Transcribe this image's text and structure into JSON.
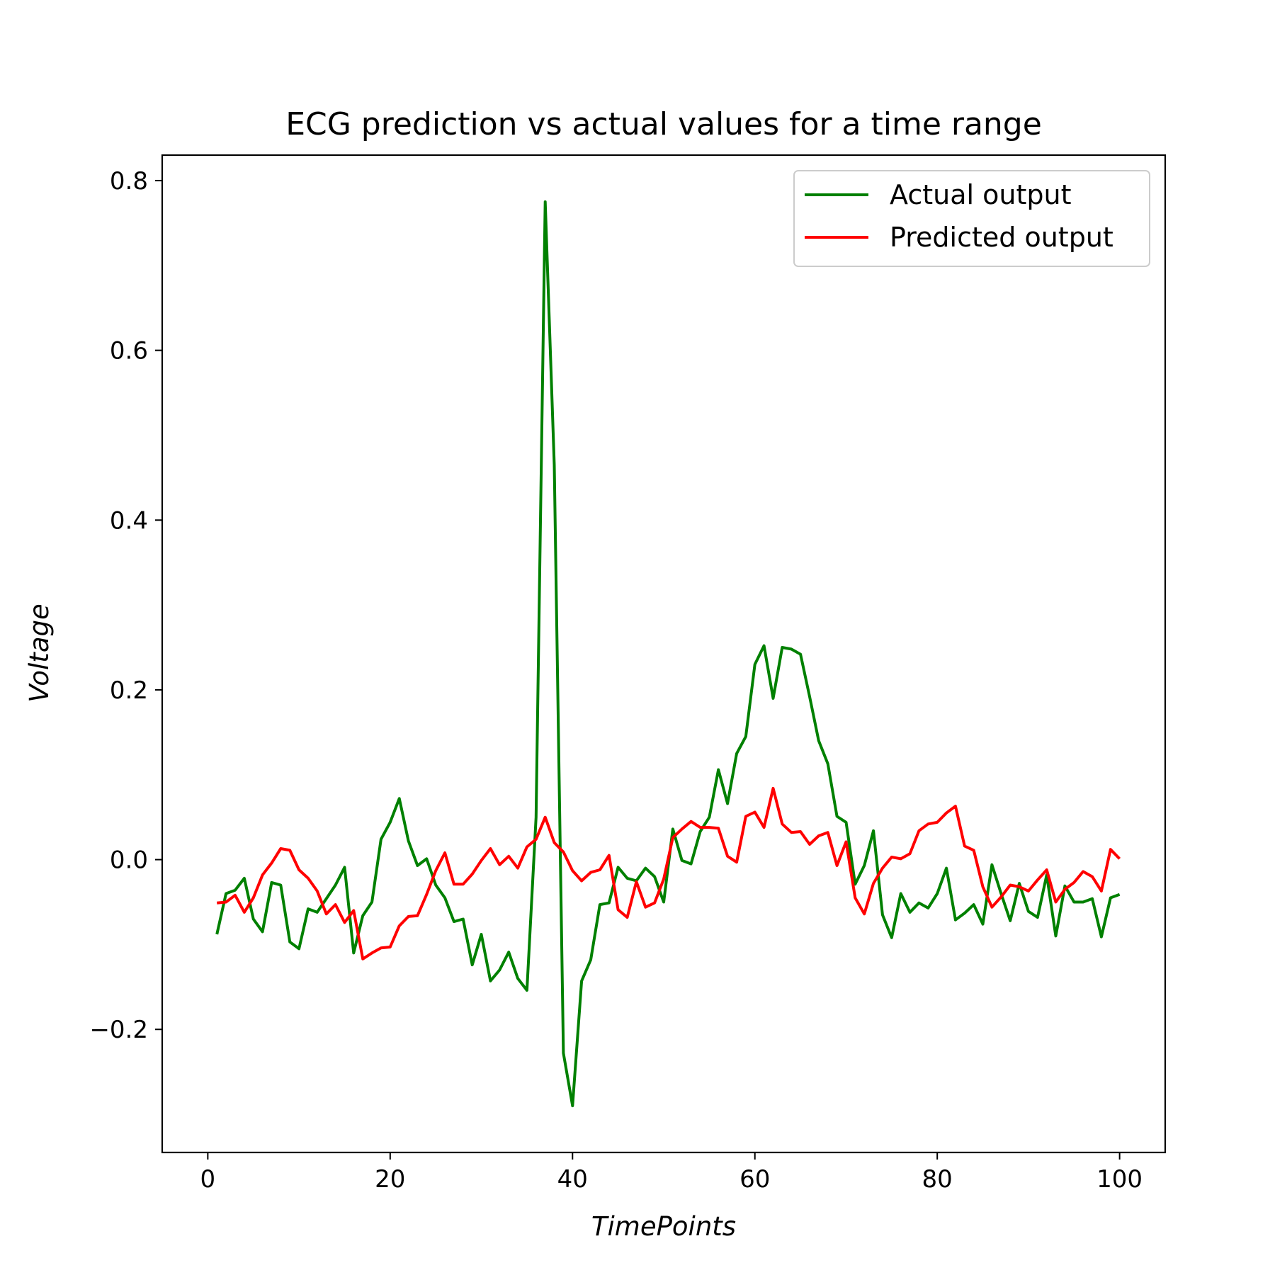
{
  "chart_data": {
    "type": "line",
    "title": "ECG prediction vs actual values for a time range",
    "xlabel": "TimePoints",
    "ylabel": "Voltage",
    "xlim": [
      -5,
      105
    ],
    "ylim": [
      -0.345,
      0.83
    ],
    "x_ticks": [
      0,
      20,
      40,
      60,
      80,
      100
    ],
    "y_ticks": [
      -0.2,
      0.0,
      0.2,
      0.4,
      0.6,
      0.8
    ],
    "x_tick_labels": [
      "0",
      "20",
      "40",
      "60",
      "80",
      "100"
    ],
    "y_tick_labels": [
      "−0.2",
      "0.0",
      "0.2",
      "0.4",
      "0.6",
      "0.8"
    ],
    "grid": false,
    "legend_position": "top-right",
    "x": [
      1,
      2,
      3,
      4,
      5,
      6,
      7,
      8,
      9,
      10,
      11,
      12,
      13,
      14,
      15,
      16,
      17,
      18,
      19,
      20,
      21,
      22,
      23,
      24,
      25,
      26,
      27,
      28,
      29,
      30,
      31,
      32,
      33,
      34,
      35,
      36,
      37,
      38,
      39,
      40,
      41,
      42,
      43,
      44,
      45,
      46,
      47,
      48,
      49,
      50,
      51,
      52,
      53,
      54,
      55,
      56,
      57,
      58,
      59,
      60,
      61,
      62,
      63,
      64,
      65,
      66,
      67,
      68,
      69,
      70,
      71,
      72,
      73,
      74,
      75,
      76,
      77,
      78,
      79,
      80,
      81,
      82,
      83,
      84,
      85,
      86,
      87,
      88,
      89,
      90,
      91,
      92,
      93,
      94,
      95,
      96,
      97,
      98,
      99,
      100
    ],
    "series": [
      {
        "name": "Actual output",
        "color": "#008000",
        "values": [
          -0.088,
          -0.04,
          -0.036,
          -0.022,
          -0.07,
          -0.085,
          -0.027,
          -0.03,
          -0.097,
          -0.105,
          -0.058,
          -0.062,
          -0.046,
          -0.03,
          -0.009,
          -0.11,
          -0.066,
          -0.05,
          0.024,
          0.044,
          0.072,
          0.022,
          -0.007,
          0.001,
          -0.03,
          -0.045,
          -0.073,
          -0.07,
          -0.124,
          -0.088,
          -0.143,
          -0.13,
          -0.109,
          -0.14,
          -0.154,
          0.05,
          0.775,
          0.465,
          -0.228,
          -0.29,
          -0.143,
          -0.118,
          -0.053,
          -0.051,
          -0.009,
          -0.022,
          -0.025,
          -0.01,
          -0.02,
          -0.05,
          0.036,
          -0.001,
          -0.005,
          0.033,
          0.05,
          0.106,
          0.066,
          0.125,
          0.145,
          0.23,
          0.252,
          0.19,
          0.25,
          0.248,
          0.242,
          0.192,
          0.14,
          0.113,
          0.051,
          0.044,
          -0.029,
          -0.007,
          0.034,
          -0.065,
          -0.092,
          -0.04,
          -0.062,
          -0.051,
          -0.057,
          -0.04,
          -0.01,
          -0.071,
          -0.063,
          -0.053,
          -0.076,
          -0.006,
          -0.04,
          -0.072,
          -0.028,
          -0.061,
          -0.068,
          -0.018,
          -0.09,
          -0.031,
          -0.05,
          -0.05,
          -0.046,
          -0.091,
          -0.045,
          -0.041
        ]
      },
      {
        "name": "Predicted output",
        "color": "#ff0000",
        "values": [
          -0.051,
          -0.05,
          -0.042,
          -0.062,
          -0.045,
          -0.018,
          -0.004,
          0.013,
          0.011,
          -0.012,
          -0.022,
          -0.037,
          -0.064,
          -0.053,
          -0.074,
          -0.06,
          -0.117,
          -0.11,
          -0.104,
          -0.103,
          -0.078,
          -0.067,
          -0.066,
          -0.041,
          -0.013,
          0.008,
          -0.029,
          -0.029,
          -0.017,
          -0.001,
          0.013,
          -0.006,
          0.004,
          -0.01,
          0.015,
          0.024,
          0.05,
          0.02,
          0.009,
          -0.013,
          -0.025,
          -0.015,
          -0.012,
          0.005,
          -0.059,
          -0.068,
          -0.026,
          -0.056,
          -0.051,
          -0.023,
          0.026,
          0.036,
          0.045,
          0.038,
          0.038,
          0.037,
          0.004,
          -0.003,
          0.051,
          0.056,
          0.038,
          0.084,
          0.042,
          0.032,
          0.033,
          0.018,
          0.028,
          0.032,
          -0.007,
          0.021,
          -0.045,
          -0.064,
          -0.028,
          -0.01,
          0.003,
          0.001,
          0.007,
          0.034,
          0.042,
          0.044,
          0.055,
          0.063,
          0.016,
          0.011,
          -0.032,
          -0.056,
          -0.044,
          -0.03,
          -0.032,
          -0.037,
          -0.024,
          -0.012,
          -0.05,
          -0.035,
          -0.027,
          -0.014,
          -0.02,
          -0.037,
          0.012,
          0.001
        ]
      }
    ]
  }
}
